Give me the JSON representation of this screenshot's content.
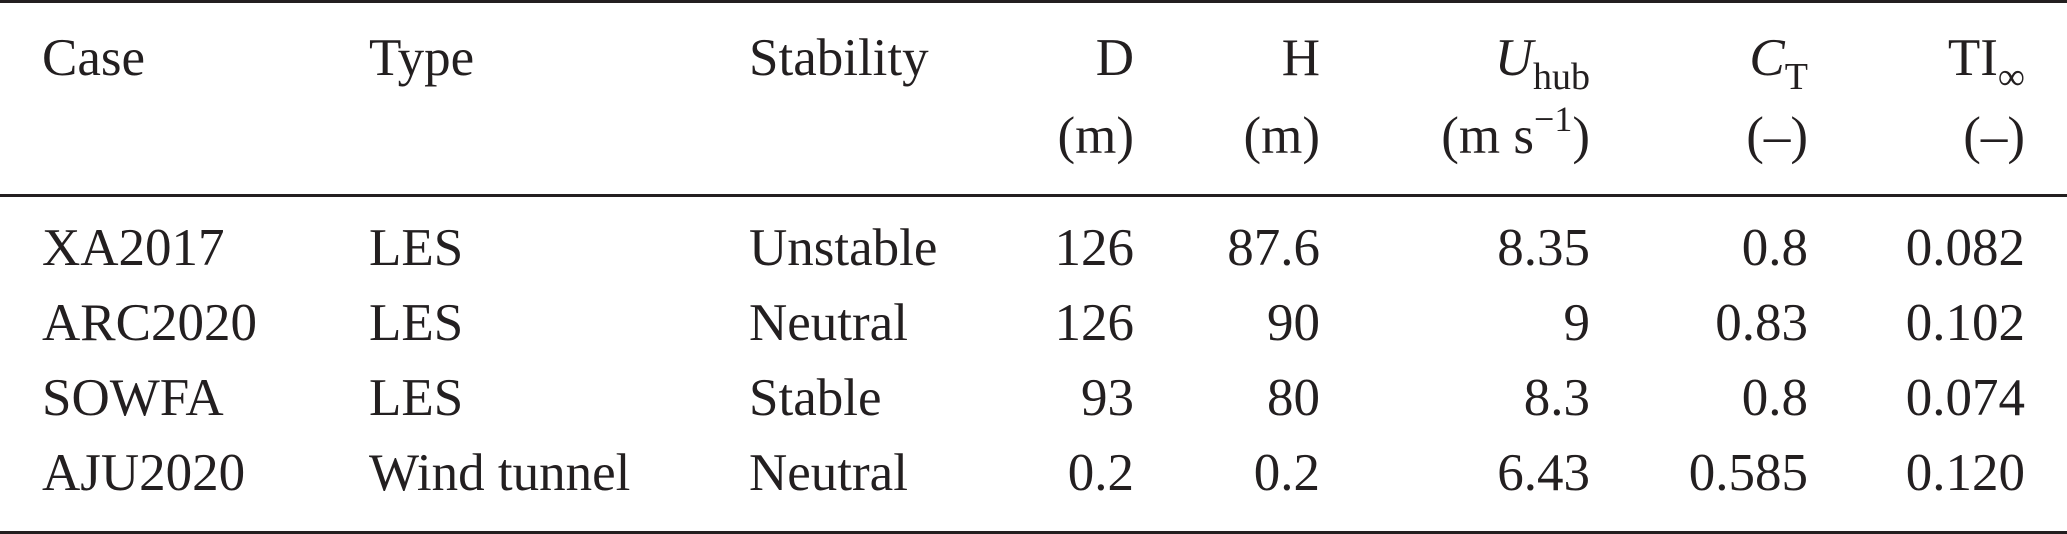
{
  "table": {
    "headers": [
      {
        "key": "case",
        "label": "Case",
        "unit": ""
      },
      {
        "key": "type",
        "label": "Type",
        "unit": ""
      },
      {
        "key": "stability",
        "label": "Stability",
        "unit": ""
      },
      {
        "key": "d",
        "label": "D",
        "unit": "(m)"
      },
      {
        "key": "h",
        "label": "H",
        "unit": "(m)"
      },
      {
        "key": "uhub",
        "label_main": "U",
        "label_sub": "hub",
        "unit_main": "(m s",
        "unit_sup": "−1",
        "unit_close": ")"
      },
      {
        "key": "ct",
        "label_main": "C",
        "label_sub": "T",
        "unit": "(–)"
      },
      {
        "key": "ti",
        "label_main": "TI",
        "label_sub": "∞",
        "unit": "(–)"
      }
    ],
    "rows": [
      {
        "case": "XA2017",
        "type": "LES",
        "stability": "Unstable",
        "d": "126",
        "h": "87.6",
        "uhub": "8.35",
        "ct": "0.8",
        "ti": "0.082"
      },
      {
        "case": "ARC2020",
        "type": "LES",
        "stability": "Neutral",
        "d": "126",
        "h": "90",
        "uhub": "9",
        "ct": "0.83",
        "ti": "0.102"
      },
      {
        "case": "SOWFA",
        "type": "LES",
        "stability": "Stable",
        "d": "93",
        "h": "80",
        "uhub": "8.3",
        "ct": "0.8",
        "ti": "0.074"
      },
      {
        "case": "AJU2020",
        "type": "Wind tunnel",
        "stability": "Neutral",
        "d": "0.2",
        "h": "0.2",
        "uhub": "6.43",
        "ct": "0.585",
        "ti": "0.120"
      }
    ]
  }
}
